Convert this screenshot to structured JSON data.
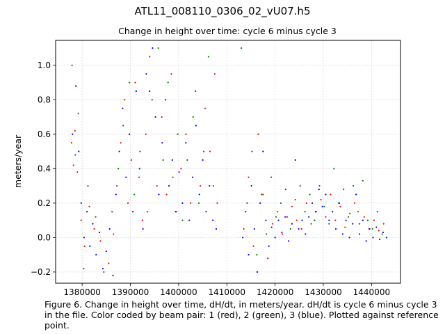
{
  "figure": {
    "suptitle": "ATL11_008110_0306_02_vU07.h5",
    "caption": "Figure 6. Change in height over time, dH/dt, in meters/year. dH/dt is cycle 6 minus cycle 3 in the file. Color coded by beam pair: 1 (red), 2 (green), 3 (blue). Plotted against reference point."
  },
  "colors": {
    "beam1": "#ff0000",
    "beam2": "#008000",
    "beam3": "#0000ff",
    "grid": "#d9d9d9"
  },
  "chart_data": {
    "type": "scatter",
    "title": "Change in height over time: cycle 6 minus cycle 3",
    "xlabel": "",
    "ylabel": "meters/year",
    "xlim": [
      1374500,
      1446000
    ],
    "ylim": [
      -0.265,
      1.145
    ],
    "grid": true,
    "x_ticks": [
      1380000,
      1390000,
      1400000,
      1410000,
      1420000,
      1430000,
      1440000
    ],
    "y_ticks": [
      -0.2,
      0.0,
      0.2,
      0.4,
      0.6,
      0.8,
      1.0
    ],
    "x_tick_labels": [
      "1380000",
      "1390000",
      "1400000",
      "1410000",
      "1420000",
      "1430000",
      "1440000"
    ],
    "y_tick_labels": [
      "−0.2",
      "0.0",
      "0.2",
      "0.4",
      "0.6",
      "0.8",
      "1.0"
    ],
    "series": [
      {
        "color": "#ff0000",
        "points": [
          [
            1377800,
            0.55
          ],
          [
            1378200,
            0.42
          ],
          [
            1378500,
            0.62
          ],
          [
            1379000,
            0.38
          ],
          [
            1379800,
            0.1
          ],
          [
            1380500,
            -0.05
          ],
          [
            1381500,
            0.18
          ],
          [
            1382500,
            0.05
          ],
          [
            1383800,
            -0.02
          ],
          [
            1385500,
            -0.15
          ],
          [
            1386500,
            0.02
          ],
          [
            1387200,
            0.3
          ],
          [
            1388000,
            0.55
          ],
          [
            1388800,
            0.8
          ],
          [
            1389500,
            0.2
          ],
          [
            1390200,
            0.45
          ],
          [
            1391000,
            0.9
          ],
          [
            1391800,
            0.35
          ],
          [
            1392500,
            0.1
          ],
          [
            1393200,
            0.6
          ],
          [
            1394000,
            1.05
          ],
          [
            1395500,
            0.3
          ],
          [
            1396500,
            0.7
          ],
          [
            1397500,
            0.25
          ],
          [
            1398500,
            0.95
          ],
          [
            1399500,
            0.15
          ],
          [
            1400500,
            0.4
          ],
          [
            1401500,
            0.6
          ],
          [
            1402500,
            0.2
          ],
          [
            1403500,
            0.85
          ],
          [
            1404500,
            0.3
          ],
          [
            1405500,
            0.75
          ],
          [
            1406500,
            0.5
          ],
          [
            1407500,
            0.95
          ],
          [
            1408000,
            0.2
          ],
          [
            1413500,
            0.05
          ],
          [
            1414500,
            0.35
          ],
          [
            1415500,
            -0.05
          ],
          [
            1416500,
            0.6
          ],
          [
            1417500,
            0.25
          ],
          [
            1418500,
            -0.12
          ],
          [
            1419500,
            0.08
          ],
          [
            1420500,
            0.15
          ],
          [
            1421500,
            0.02
          ],
          [
            1422500,
            0.12
          ],
          [
            1423500,
            0.18
          ],
          [
            1424500,
            0.1
          ],
          [
            1425500,
            0.05
          ],
          [
            1426500,
            0.2
          ],
          [
            1427500,
            0.08
          ],
          [
            1428500,
            0.15
          ],
          [
            1429500,
            0.22
          ],
          [
            1430500,
            0.12
          ],
          [
            1431500,
            0.25
          ],
          [
            1432500,
            0.1
          ],
          [
            1433500,
            0.18
          ],
          [
            1434500,
            0.06
          ],
          [
            1435500,
            0.14
          ],
          [
            1436500,
            0.2
          ],
          [
            1437500,
            0.08
          ],
          [
            1438500,
            0.12
          ],
          [
            1439500,
            0.05
          ],
          [
            1440500,
            0.1
          ],
          [
            1441500,
            0.04
          ],
          [
            1442500,
            0.08
          ]
        ]
      },
      {
        "color": "#008000",
        "points": [
          [
            1377900,
            1.0
          ],
          [
            1378600,
            0.48
          ],
          [
            1379200,
            0.72
          ],
          [
            1380300,
            -0.18
          ],
          [
            1381200,
            0.3
          ],
          [
            1382800,
            0.12
          ],
          [
            1384500,
            -0.2
          ],
          [
            1386200,
            0.15
          ],
          [
            1387500,
            0.4
          ],
          [
            1388500,
            0.65
          ],
          [
            1389800,
            0.9
          ],
          [
            1390800,
            0.25
          ],
          [
            1392000,
            0.5
          ],
          [
            1393500,
            0.15
          ],
          [
            1394500,
            0.8
          ],
          [
            1395800,
            1.1
          ],
          [
            1396800,
            0.45
          ],
          [
            1397800,
            0.9
          ],
          [
            1398800,
            0.35
          ],
          [
            1399800,
            0.6
          ],
          [
            1400800,
            0.1
          ],
          [
            1401800,
            0.45
          ],
          [
            1403000,
            0.7
          ],
          [
            1404200,
            0.2
          ],
          [
            1405200,
            0.5
          ],
          [
            1406200,
            1.05
          ],
          [
            1407200,
            0.3
          ],
          [
            1413000,
            1.1
          ],
          [
            1414200,
            0.2
          ],
          [
            1415200,
            0.5
          ],
          [
            1416200,
            -0.1
          ],
          [
            1417200,
            0.25
          ],
          [
            1418200,
            0.02
          ],
          [
            1419200,
            0.35
          ],
          [
            1420200,
            0.12
          ],
          [
            1421200,
            0.2
          ],
          [
            1422200,
            0.28
          ],
          [
            1423200,
            0.05
          ],
          [
            1424200,
            0.22
          ],
          [
            1425200,
            0.3
          ],
          [
            1426200,
            0.15
          ],
          [
            1427200,
            0.25
          ],
          [
            1428200,
            0.1
          ],
          [
            1429200,
            0.3
          ],
          [
            1430200,
            0.18
          ],
          [
            1431200,
            0.08
          ],
          [
            1432200,
            0.4
          ],
          [
            1433200,
            0.2
          ],
          [
            1434200,
            0.28
          ],
          [
            1435200,
            0.12
          ],
          [
            1436200,
            0.3
          ],
          [
            1437200,
            0.15
          ],
          [
            1438200,
            0.33
          ],
          [
            1439200,
            0.1
          ],
          [
            1440200,
            0.05
          ],
          [
            1441200,
            0.15
          ],
          [
            1442200,
            0.02
          ]
        ]
      },
      {
        "color": "#0000ff",
        "points": [
          [
            1378000,
            0.6
          ],
          [
            1378700,
            0.88
          ],
          [
            1379300,
            0.5
          ],
          [
            1379800,
            0.2
          ],
          [
            1380400,
            0.0
          ],
          [
            1381000,
            0.15
          ],
          [
            1381600,
            -0.05
          ],
          [
            1382200,
            0.08
          ],
          [
            1382900,
            -0.1
          ],
          [
            1383600,
            0.03
          ],
          [
            1384300,
            -0.18
          ],
          [
            1385000,
            -0.08
          ],
          [
            1385700,
            0.05
          ],
          [
            1386400,
            -0.22
          ],
          [
            1387000,
            0.25
          ],
          [
            1387700,
            0.5
          ],
          [
            1388400,
            0.75
          ],
          [
            1389100,
            0.35
          ],
          [
            1389800,
            0.6
          ],
          [
            1390500,
            0.15
          ],
          [
            1391200,
            0.85
          ],
          [
            1391900,
            0.4
          ],
          [
            1392600,
            0.05
          ],
          [
            1393300,
            0.95
          ],
          [
            1394000,
            0.85
          ],
          [
            1394600,
            1.1
          ],
          [
            1395200,
            0.7
          ],
          [
            1395900,
            0.25
          ],
          [
            1396600,
            0.55
          ],
          [
            1397300,
            0.8
          ],
          [
            1398000,
            0.3
          ],
          [
            1398700,
            0.45
          ],
          [
            1399400,
            0.15
          ],
          [
            1400100,
            0.38
          ],
          [
            1400800,
            0.2
          ],
          [
            1401500,
            0.55
          ],
          [
            1402200,
            0.1
          ],
          [
            1402900,
            0.35
          ],
          [
            1403600,
            0.65
          ],
          [
            1404300,
            0.25
          ],
          [
            1405000,
            0.45
          ],
          [
            1405700,
            0.15
          ],
          [
            1406400,
            0.3
          ],
          [
            1407100,
            0.1
          ],
          [
            1407800,
            0.05
          ],
          [
            1413300,
            0.0
          ],
          [
            1413900,
            0.15
          ],
          [
            1414500,
            -0.1
          ],
          [
            1415100,
            0.3
          ],
          [
            1415700,
            0.05
          ],
          [
            1416300,
            -0.2
          ],
          [
            1416900,
            0.2
          ],
          [
            1417500,
            0.5
          ],
          [
            1418100,
            0.1
          ],
          [
            1418700,
            -0.05
          ],
          [
            1419300,
            0.06
          ],
          [
            1420000,
            0.0
          ],
          [
            1420700,
            0.1
          ],
          [
            1421400,
            0.03
          ],
          [
            1422100,
            0.12
          ],
          [
            1422800,
            -0.02
          ],
          [
            1423500,
            0.08
          ],
          [
            1424200,
            0.45
          ],
          [
            1424900,
            0.05
          ],
          [
            1425600,
            0.1
          ],
          [
            1426300,
            0.02
          ],
          [
            1427000,
            0.12
          ],
          [
            1427700,
            0.2
          ],
          [
            1428400,
            0.15
          ],
          [
            1429100,
            0.28
          ],
          [
            1429800,
            0.18
          ],
          [
            1430500,
            0.25
          ],
          [
            1431200,
            0.1
          ],
          [
            1431900,
            0.15
          ],
          [
            1432600,
            0.05
          ],
          [
            1433300,
            0.2
          ],
          [
            1434000,
            0.02
          ],
          [
            1434700,
            0.1
          ],
          [
            1435400,
            0.0
          ],
          [
            1436100,
            0.08
          ],
          [
            1436800,
            0.25
          ],
          [
            1437500,
            0.02
          ],
          [
            1438200,
            0.1
          ],
          [
            1438900,
            -0.02
          ],
          [
            1439600,
            0.05
          ],
          [
            1440300,
            0.0
          ],
          [
            1441000,
            0.06
          ],
          [
            1441700,
            -0.01
          ],
          [
            1442400,
            0.03
          ],
          [
            1443100,
            0.0
          ]
        ]
      }
    ]
  }
}
